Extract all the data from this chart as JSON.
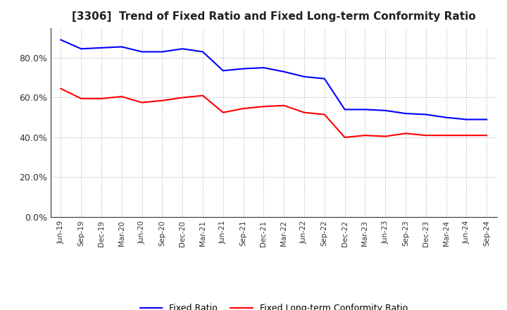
{
  "title": "[3306]  Trend of Fixed Ratio and Fixed Long-term Conformity Ratio",
  "x_labels": [
    "Jun-19",
    "Sep-19",
    "Dec-19",
    "Mar-20",
    "Jun-20",
    "Sep-20",
    "Dec-20",
    "Mar-21",
    "Jun-21",
    "Sep-21",
    "Dec-21",
    "Mar-22",
    "Jun-22",
    "Sep-22",
    "Dec-22",
    "Mar-23",
    "Jun-23",
    "Sep-23",
    "Dec-23",
    "Mar-24",
    "Jun-24",
    "Sep-24"
  ],
  "fixed_ratio": [
    89.0,
    84.5,
    85.0,
    85.5,
    83.0,
    83.0,
    84.5,
    83.0,
    73.5,
    74.5,
    75.0,
    73.0,
    70.5,
    69.5,
    54.0,
    54.0,
    53.5,
    52.0,
    51.5,
    50.0,
    49.0,
    49.0
  ],
  "fixed_lt_ratio": [
    64.5,
    59.5,
    59.5,
    60.5,
    57.5,
    58.5,
    60.0,
    61.0,
    52.5,
    54.5,
    55.5,
    56.0,
    52.5,
    51.5,
    40.0,
    41.0,
    40.5,
    42.0,
    41.0,
    41.0,
    41.0,
    41.0
  ],
  "fixed_ratio_color": "#0000ff",
  "fixed_lt_ratio_color": "#ff0000",
  "ylim": [
    0,
    95
  ],
  "yticks": [
    0,
    20,
    40,
    60,
    80
  ],
  "background_color": "#ffffff",
  "plot_bg_color": "#ffffff",
  "grid_color": "#aaaaaa",
  "legend_fixed_ratio": "Fixed Ratio",
  "legend_fixed_lt_ratio": "Fixed Long-term Conformity Ratio",
  "line_width": 1.5
}
